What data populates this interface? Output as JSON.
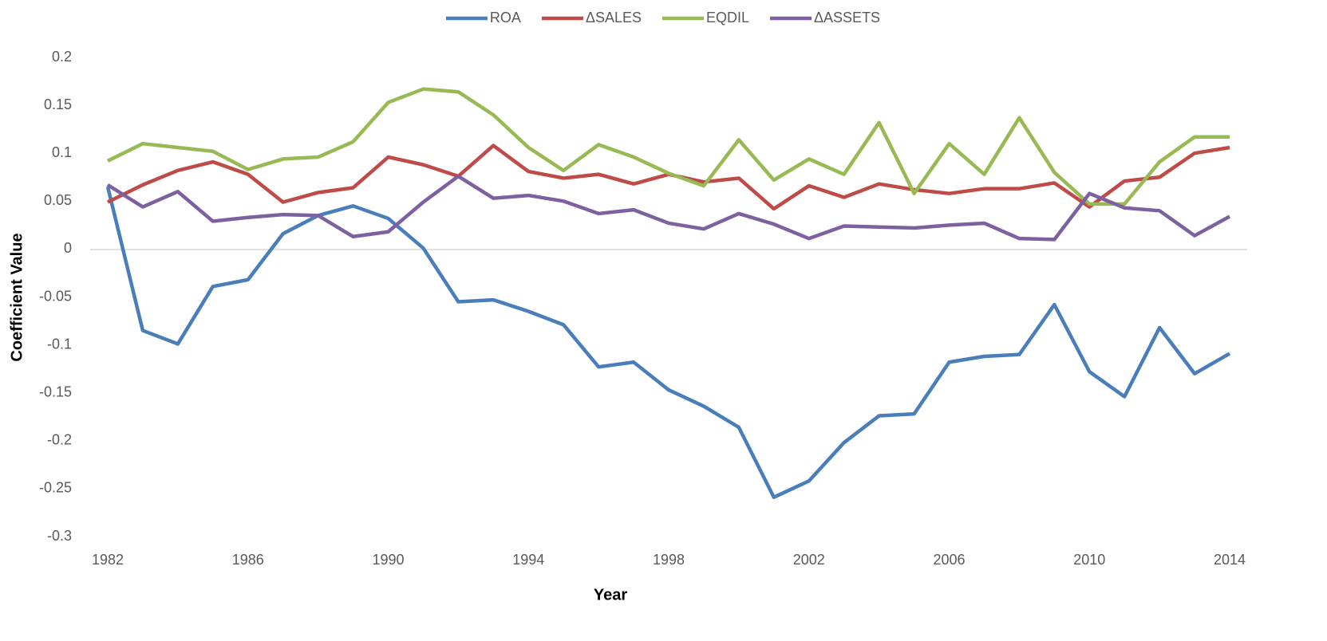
{
  "chart_data": {
    "type": "line",
    "x_label": "Year",
    "y_label": "Coefficient Value",
    "x": [
      1982,
      1983,
      1984,
      1985,
      1986,
      1987,
      1988,
      1989,
      1990,
      1991,
      1992,
      1993,
      1994,
      1995,
      1996,
      1997,
      1998,
      1999,
      2000,
      2001,
      2002,
      2003,
      2004,
      2005,
      2006,
      2007,
      2008,
      2009,
      2010,
      2011,
      2012,
      2013,
      2014
    ],
    "xlim": [
      1981.5,
      2014.5
    ],
    "xticks": [
      1982,
      1986,
      1990,
      1994,
      1998,
      2002,
      2006,
      2010,
      2014
    ],
    "ylim": [
      -0.3,
      0.2
    ],
    "yticks": [
      0.2,
      0.15,
      0.1,
      0.05,
      0,
      -0.05,
      -0.1,
      -0.15,
      -0.2,
      -0.25,
      -0.3
    ],
    "grid": false,
    "legend": "top",
    "series": [
      {
        "name": "ROA",
        "color": "#4a7ebb",
        "values": [
          0.065,
          -0.085,
          -0.099,
          -0.039,
          -0.032,
          0.016,
          0.035,
          0.045,
          0.032,
          0.001,
          -0.055,
          -0.053,
          -0.065,
          -0.079,
          -0.123,
          -0.118,
          -0.147,
          -0.164,
          -0.186,
          -0.259,
          -0.242,
          -0.202,
          -0.174,
          -0.172,
          -0.118,
          -0.112,
          -0.11,
          -0.058,
          -0.128,
          -0.154,
          -0.082,
          -0.13,
          -0.109
        ]
      },
      {
        "name": "ΔSALES",
        "color": "#be4b48",
        "values": [
          0.049,
          0.067,
          0.082,
          0.091,
          0.078,
          0.049,
          0.059,
          0.064,
          0.096,
          0.088,
          0.076,
          0.108,
          0.081,
          0.074,
          0.078,
          0.068,
          0.078,
          0.07,
          0.074,
          0.042,
          0.066,
          0.054,
          0.068,
          0.062,
          0.058,
          0.063,
          0.063,
          0.069,
          0.044,
          0.071,
          0.075,
          0.1,
          0.106
        ]
      },
      {
        "name": "EQDIL",
        "color": "#98b954",
        "values": [
          0.092,
          0.11,
          0.106,
          0.102,
          0.083,
          0.094,
          0.096,
          0.112,
          0.153,
          0.167,
          0.164,
          0.14,
          0.106,
          0.082,
          0.109,
          0.096,
          0.079,
          0.066,
          0.114,
          0.072,
          0.094,
          0.078,
          0.132,
          0.058,
          0.11,
          0.078,
          0.137,
          0.08,
          0.047,
          0.047,
          0.091,
          0.117,
          0.117
        ]
      },
      {
        "name": "ΔASSETS",
        "color": "#7d60a0",
        "values": [
          0.067,
          0.044,
          0.06,
          0.029,
          0.033,
          0.036,
          0.035,
          0.013,
          0.018,
          0.049,
          0.076,
          0.053,
          0.056,
          0.05,
          0.037,
          0.041,
          0.027,
          0.021,
          0.037,
          0.026,
          0.011,
          0.024,
          0.023,
          0.022,
          0.025,
          0.027,
          0.011,
          0.01,
          0.058,
          0.043,
          0.04,
          0.014,
          0.034
        ]
      }
    ]
  }
}
